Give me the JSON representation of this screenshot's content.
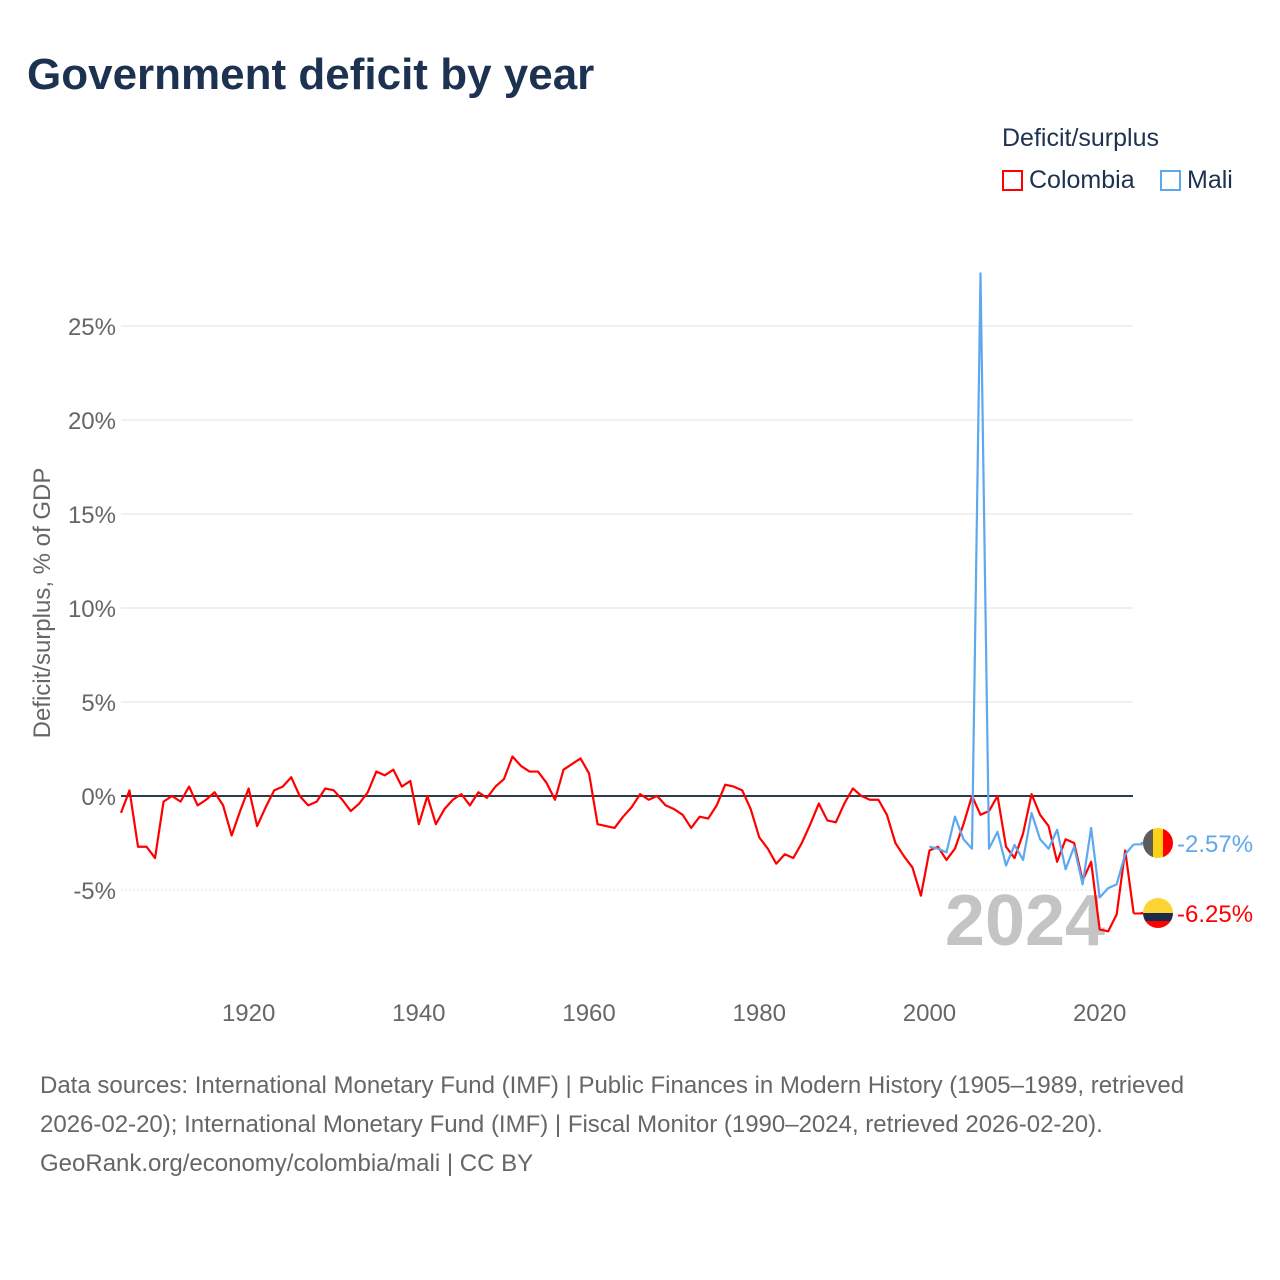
{
  "title": "Government deficit by year",
  "footer": {
    "sources": "Data sources: International Monetary Fund (IMF) | Public Finances in Modern History (1905–1989, retrieved 2026-02-20); International Monetary Fund (IMF) | Fiscal Monitor (1990–2024, retrieved 2026-02-20).",
    "link": "GeoRank.org/economy/colombia/mali | CC BY"
  },
  "chart_data": {
    "type": "line",
    "title": "Government deficit by year",
    "ylabel": "Deficit/surplus, % of GDP",
    "xlabel": "",
    "legend_title": "Deficit/surplus",
    "legend_position": "top-right",
    "year_watermark": "2024",
    "xlim": [
      1905,
      2024
    ],
    "ylim": [
      -8,
      28
    ],
    "x_ticks": [
      1920,
      1940,
      1960,
      1980,
      2000,
      2020
    ],
    "y_ticks": [
      {
        "v": -5,
        "label": "-5%"
      },
      {
        "v": 0,
        "label": "0%"
      },
      {
        "v": 5,
        "label": "5%"
      },
      {
        "v": 10,
        "label": "10%"
      },
      {
        "v": 15,
        "label": "15%"
      },
      {
        "v": 20,
        "label": "20%"
      },
      {
        "v": 25,
        "label": "25%"
      }
    ],
    "series": [
      {
        "name": "Colombia",
        "color": "#ff0000",
        "start": 1905,
        "end_label": "-6.25%",
        "values": [
          -0.9,
          0.3,
          -2.7,
          -2.7,
          -3.3,
          -0.3,
          0.0,
          -0.3,
          0.5,
          -0.5,
          -0.2,
          0.2,
          -0.5,
          -2.1,
          -0.8,
          0.4,
          -1.6,
          -0.6,
          0.3,
          0.5,
          1.0,
          0.0,
          -0.5,
          -0.3,
          0.4,
          0.3,
          -0.2,
          -0.8,
          -0.4,
          0.2,
          1.3,
          1.1,
          1.4,
          0.5,
          0.8,
          -1.5,
          0.0,
          -1.5,
          -0.7,
          -0.2,
          0.1,
          -0.5,
          0.2,
          -0.1,
          0.5,
          0.9,
          2.1,
          1.6,
          1.3,
          1.3,
          0.7,
          -0.2,
          1.4,
          1.7,
          2.0,
          1.2,
          -1.5,
          -1.6,
          -1.7,
          -1.1,
          -0.6,
          0.1,
          -0.2,
          0.0,
          -0.5,
          -0.7,
          -1.0,
          -1.7,
          -1.1,
          -1.2,
          -0.5,
          0.6,
          0.5,
          0.3,
          -0.7,
          -2.2,
          -2.8,
          -3.6,
          -3.1,
          -3.3,
          -2.5,
          -1.5,
          -0.4,
          -1.3,
          -1.4,
          -0.4,
          0.4,
          0.0,
          -0.2,
          -0.2,
          -1.0,
          -2.5,
          -3.2,
          -3.8,
          -5.3,
          -2.9,
          -2.7,
          -3.4,
          -2.8,
          -1.5,
          0.0,
          -1.0,
          -0.8,
          0.0,
          -2.7,
          -3.3,
          -2.0,
          0.1,
          -1.0,
          -1.6,
          -3.5,
          -2.3,
          -2.5,
          -4.5,
          -3.5,
          -7.1,
          -7.2,
          -6.3,
          -2.9,
          -6.25
        ]
      },
      {
        "name": "Mali",
        "color": "#5ea8ee",
        "start": 2000,
        "end_label": "-2.57%",
        "values": [
          -2.7,
          -2.8,
          -3.0,
          -1.1,
          -2.3,
          -2.8,
          27.8,
          -2.8,
          -1.9,
          -3.7,
          -2.6,
          -3.4,
          -0.9,
          -2.3,
          -2.8,
          -1.8,
          -3.9,
          -2.7,
          -4.7,
          -1.7,
          -5.4,
          -4.9,
          -4.7,
          -3.1,
          -2.57
        ]
      }
    ]
  }
}
